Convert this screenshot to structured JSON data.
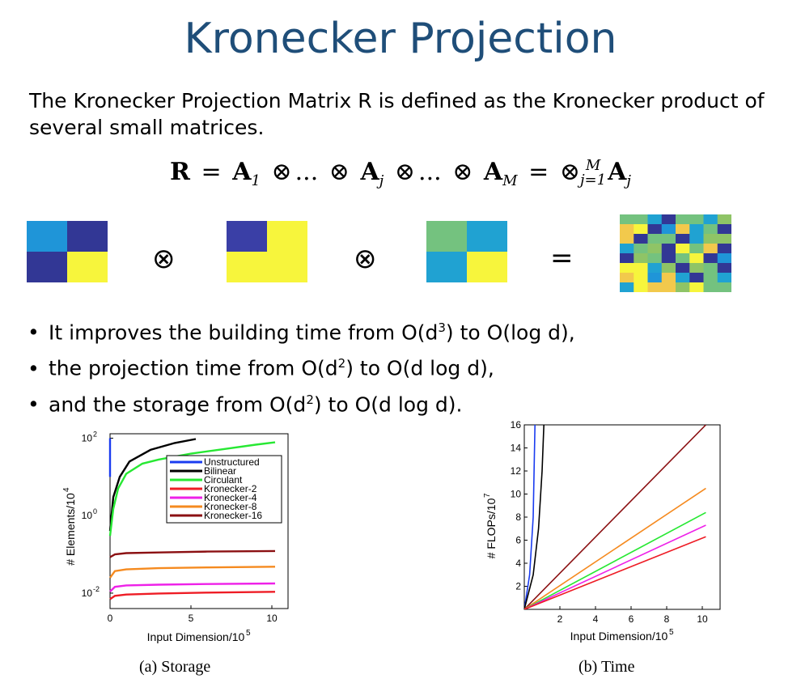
{
  "title": "Kronecker Projection",
  "intro": "The Kronecker Projection Matrix R is defined as the Kronecker product of several small matrices.",
  "formula": {
    "lhs": "R",
    "eq": "=",
    "a": "A",
    "s1": "1",
    "sj": "j",
    "sM": "M",
    "otimes": "⊗",
    "dots": "...",
    "sup": "M",
    "sub": "j=1"
  },
  "matrices": {
    "colors": [
      "#1f95d8",
      "#323795",
      "#3a3fa6",
      "#f7f53c",
      "#74c27f",
      "#20a2d2"
    ],
    "op_times": "⊗",
    "op_equals": "="
  },
  "bullets": [
    {
      "pre": "It improves the building time from O(d",
      "sup": "3",
      "post": ") to O(log d),"
    },
    {
      "pre": "the projection time from O(d",
      "sup": "2",
      "post": ") to O(d log d),"
    },
    {
      "pre": "and the storage from O(d",
      "sup": "2",
      "post": ") to O(d log d)."
    }
  ],
  "captions": {
    "storage": "(a) Storage",
    "time": "(b) Time"
  },
  "chart_data": [
    {
      "type": "line",
      "xlabel": "Input Dimension/10",
      "xlabel_exp": "5",
      "ylabel": "# Elements/10",
      "ylabel_exp": "4",
      "y_scale": "log",
      "xlim": [
        0,
        11
      ],
      "ylim": [
        0.004,
        130
      ],
      "x_ticks": [
        0,
        5,
        10
      ],
      "y_ticks": [
        {
          "base": "10",
          "exp": "2",
          "value": 100
        },
        {
          "base": "10",
          "exp": "0",
          "value": 1
        },
        {
          "base": "10",
          "exp": "-2",
          "value": 0.01
        }
      ],
      "legend_position": "center",
      "series": [
        {
          "name": "Unstructured",
          "color": "#1a3cf0",
          "points": [
            [
              0,
              10
            ],
            [
              0,
              100
            ]
          ]
        },
        {
          "name": "Bilinear",
          "color": "#000000",
          "points": [
            [
              0,
              0.4
            ],
            [
              0.2,
              3
            ],
            [
              0.6,
              10
            ],
            [
              1.2,
              25
            ],
            [
              2.5,
              50
            ],
            [
              4,
              75
            ],
            [
              5.3,
              95
            ]
          ]
        },
        {
          "name": "Circulant",
          "color": "#27e833",
          "points": [
            [
              0,
              0.3
            ],
            [
              0.2,
              1.5
            ],
            [
              0.5,
              5
            ],
            [
              1,
              12
            ],
            [
              2,
              22
            ],
            [
              3,
              28
            ],
            [
              5,
              40
            ],
            [
              7,
              52
            ],
            [
              9,
              68
            ],
            [
              10.2,
              78
            ]
          ]
        },
        {
          "name": "Kronecker-2",
          "color": "#ee1c25",
          "points": [
            [
              0,
              0.007
            ],
            [
              0.3,
              0.0085
            ],
            [
              1,
              0.0092
            ],
            [
              3,
              0.0098
            ],
            [
              6,
              0.0103
            ],
            [
              10.2,
              0.0108
            ]
          ]
        },
        {
          "name": "Kronecker-4",
          "color": "#ee21e8",
          "points": [
            [
              0,
              0.011
            ],
            [
              0.3,
              0.0145
            ],
            [
              1,
              0.0158
            ],
            [
              3,
              0.0165
            ],
            [
              6,
              0.0172
            ],
            [
              10.2,
              0.0178
            ]
          ]
        },
        {
          "name": "Kronecker-8",
          "color": "#f58a1f",
          "points": [
            [
              0,
              0.025
            ],
            [
              0.3,
              0.037
            ],
            [
              1,
              0.041
            ],
            [
              3,
              0.044
            ],
            [
              6,
              0.046
            ],
            [
              10.2,
              0.048
            ]
          ]
        },
        {
          "name": "Kronecker-16",
          "color": "#8b1012",
          "points": [
            [
              0,
              0.085
            ],
            [
              0.3,
              0.1
            ],
            [
              1,
              0.108
            ],
            [
              3,
              0.112
            ],
            [
              6,
              0.118
            ],
            [
              10.2,
              0.122
            ]
          ]
        }
      ]
    },
    {
      "type": "line",
      "xlabel": "Input Dimension/10",
      "xlabel_exp": "5",
      "ylabel": "# FLOPs/10",
      "ylabel_exp": "7",
      "xlim": [
        0,
        11
      ],
      "ylim": [
        0,
        16
      ],
      "x_ticks": [
        2,
        4,
        6,
        8,
        10
      ],
      "y_ticks": [
        2,
        4,
        6,
        8,
        10,
        12,
        14,
        16
      ],
      "series": [
        {
          "color": "#1a3cf0",
          "points": [
            [
              0,
              0
            ],
            [
              0.3,
              3
            ],
            [
              0.5,
              8
            ],
            [
              0.6,
              16
            ]
          ]
        },
        {
          "color": "#000000",
          "points": [
            [
              0,
              0
            ],
            [
              0.5,
              3
            ],
            [
              0.8,
              7
            ],
            [
              1.0,
              12
            ],
            [
              1.1,
              16
            ]
          ]
        },
        {
          "color": "#8b1012",
          "points": [
            [
              0,
              0
            ],
            [
              10.2,
              16
            ]
          ]
        },
        {
          "color": "#f58a1f",
          "points": [
            [
              0,
              0
            ],
            [
              10.2,
              10.5
            ]
          ]
        },
        {
          "color": "#27e833",
          "points": [
            [
              0,
              0
            ],
            [
              10.2,
              8.4
            ]
          ]
        },
        {
          "color": "#ee21e8",
          "points": [
            [
              0,
              0
            ],
            [
              10.2,
              7.3
            ]
          ]
        },
        {
          "color": "#ee1c25",
          "points": [
            [
              0,
              0
            ],
            [
              10.2,
              6.3
            ]
          ]
        }
      ]
    }
  ]
}
